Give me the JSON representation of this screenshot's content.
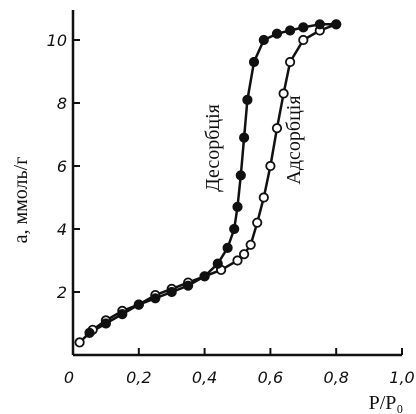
{
  "chart_data": {
    "type": "line",
    "title": "",
    "xlabel": "P/P₀",
    "ylabel": "а, ммоль/г",
    "xlim": [
      0,
      1.0
    ],
    "ylim": [
      0,
      10.5
    ],
    "x_ticks": [
      "0",
      "0,2",
      "0,4",
      "0,6",
      "0,8",
      "1,0"
    ],
    "x_tick_values": [
      0,
      0.2,
      0.4,
      0.6,
      0.8,
      1.0
    ],
    "y_ticks": [
      "2",
      "4",
      "6",
      "8",
      "10"
    ],
    "y_tick_values": [
      2,
      4,
      6,
      8,
      10
    ],
    "grid": false,
    "series": [
      {
        "name": "Адсорбція",
        "marker": "open-circle",
        "color": "#111111",
        "x": [
          0.02,
          0.06,
          0.1,
          0.15,
          0.2,
          0.25,
          0.3,
          0.35,
          0.4,
          0.45,
          0.5,
          0.52,
          0.54,
          0.56,
          0.58,
          0.6,
          0.62,
          0.64,
          0.66,
          0.7,
          0.75,
          0.8
        ],
        "y": [
          0.4,
          0.8,
          1.1,
          1.4,
          1.6,
          1.9,
          2.1,
          2.3,
          2.5,
          2.7,
          3.0,
          3.2,
          3.5,
          4.2,
          5.0,
          6.0,
          7.2,
          8.3,
          9.3,
          10.0,
          10.3,
          10.5
        ]
      },
      {
        "name": "Десорбція",
        "marker": "filled-circle",
        "color": "#111111",
        "x": [
          0.05,
          0.1,
          0.15,
          0.2,
          0.25,
          0.3,
          0.35,
          0.4,
          0.44,
          0.47,
          0.49,
          0.5,
          0.51,
          0.52,
          0.53,
          0.55,
          0.58,
          0.62,
          0.66,
          0.7,
          0.75,
          0.8
        ],
        "y": [
          0.7,
          1.0,
          1.3,
          1.6,
          1.8,
          2.0,
          2.2,
          2.5,
          2.9,
          3.4,
          4.0,
          4.7,
          5.7,
          6.9,
          8.1,
          9.3,
          10.0,
          10.2,
          10.3,
          10.4,
          10.5,
          10.5
        ]
      }
    ]
  }
}
